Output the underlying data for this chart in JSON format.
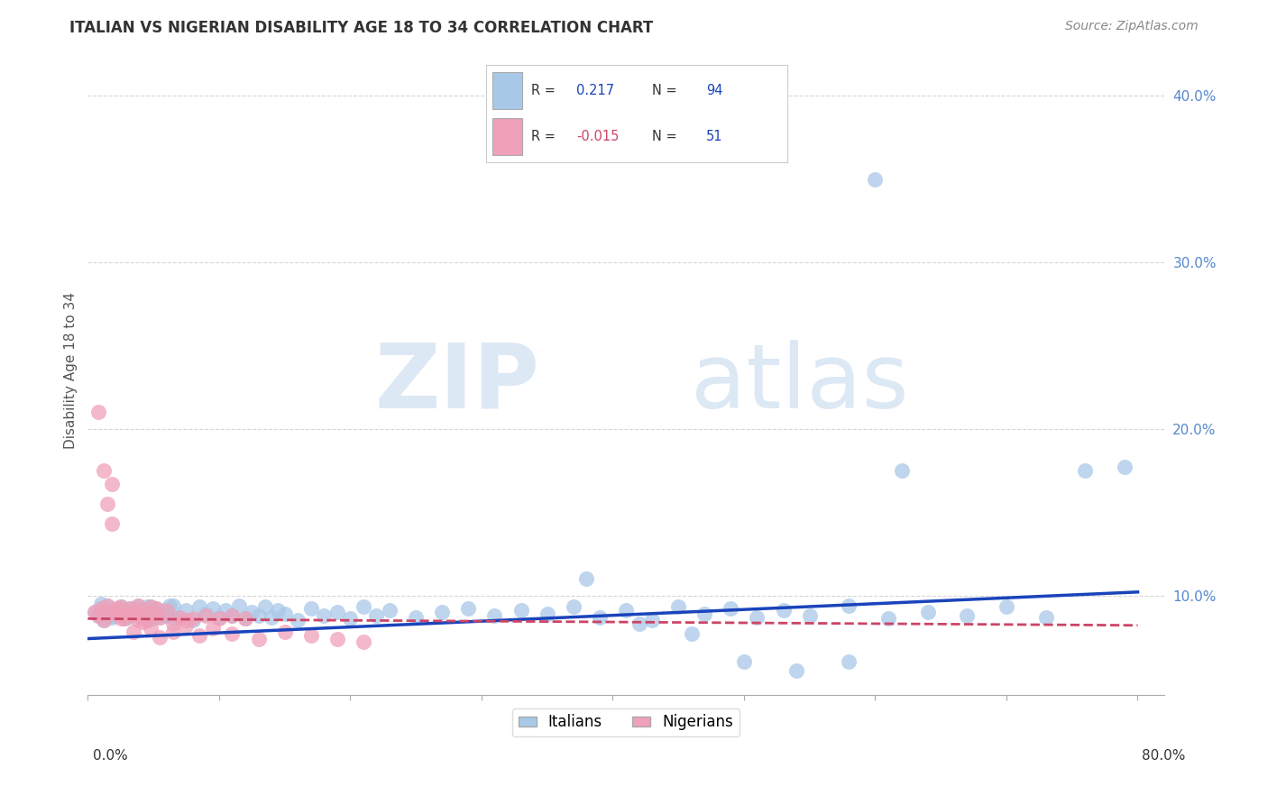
{
  "title": "ITALIAN VS NIGERIAN DISABILITY AGE 18 TO 34 CORRELATION CHART",
  "source": "Source: ZipAtlas.com",
  "ylabel": "Disability Age 18 to 34",
  "xlim": [
    0.0,
    0.82
  ],
  "ylim": [
    0.04,
    0.43
  ],
  "italian_R": 0.217,
  "italian_N": 94,
  "nigerian_R": -0.015,
  "nigerian_N": 51,
  "italian_color": "#a8c8e8",
  "nigerian_color": "#f0a0b8",
  "italian_line_color": "#1a44bb",
  "nigerian_line_color": "#cc4466",
  "watermark_zip": "ZIP",
  "watermark_atlas": "atlas",
  "watermark_color": "#dde8f5",
  "background_color": "#ffffff",
  "grid_color": "#cccccc",
  "title_color": "#333333",
  "title_fontsize": 12,
  "ytick_vals": [
    0.1,
    0.2,
    0.3,
    0.4
  ],
  "ytick_labels": [
    "10.0%",
    "20.0%",
    "30.0%",
    "40.0%"
  ],
  "xtick_vals": [
    0.0,
    0.1,
    0.2,
    0.3,
    0.4,
    0.5,
    0.6,
    0.7,
    0.8
  ],
  "italian_scatter_x": [
    0.005,
    0.008,
    0.01,
    0.012,
    0.015,
    0.018,
    0.02,
    0.022,
    0.025,
    0.028,
    0.03,
    0.032,
    0.035,
    0.038,
    0.04,
    0.042,
    0.045,
    0.048,
    0.05,
    0.052,
    0.055,
    0.058,
    0.06,
    0.062,
    0.065,
    0.01,
    0.015,
    0.02,
    0.025,
    0.03,
    0.035,
    0.04,
    0.045,
    0.05,
    0.055,
    0.06,
    0.065,
    0.07,
    0.075,
    0.08,
    0.085,
    0.09,
    0.095,
    0.1,
    0.105,
    0.11,
    0.115,
    0.12,
    0.125,
    0.13,
    0.135,
    0.14,
    0.145,
    0.15,
    0.16,
    0.17,
    0.18,
    0.19,
    0.2,
    0.21,
    0.22,
    0.23,
    0.25,
    0.27,
    0.29,
    0.31,
    0.33,
    0.35,
    0.37,
    0.39,
    0.41,
    0.43,
    0.45,
    0.47,
    0.49,
    0.51,
    0.53,
    0.55,
    0.58,
    0.61,
    0.64,
    0.67,
    0.7,
    0.73,
    0.76,
    0.79,
    0.58,
    0.6,
    0.62,
    0.38,
    0.42,
    0.46,
    0.5,
    0.54
  ],
  "italian_scatter_y": [
    0.09,
    0.088,
    0.092,
    0.085,
    0.094,
    0.087,
    0.091,
    0.089,
    0.093,
    0.086,
    0.088,
    0.092,
    0.09,
    0.094,
    0.087,
    0.091,
    0.085,
    0.093,
    0.089,
    0.092,
    0.087,
    0.091,
    0.088,
    0.094,
    0.086,
    0.095,
    0.09,
    0.088,
    0.092,
    0.087,
    0.091,
    0.089,
    0.093,
    0.086,
    0.09,
    0.088,
    0.094,
    0.087,
    0.091,
    0.085,
    0.093,
    0.089,
    0.092,
    0.087,
    0.091,
    0.088,
    0.094,
    0.086,
    0.09,
    0.088,
    0.093,
    0.087,
    0.091,
    0.089,
    0.085,
    0.092,
    0.088,
    0.09,
    0.086,
    0.093,
    0.088,
    0.091,
    0.087,
    0.09,
    0.092,
    0.088,
    0.091,
    0.089,
    0.093,
    0.087,
    0.091,
    0.085,
    0.093,
    0.089,
    0.092,
    0.087,
    0.091,
    0.088,
    0.094,
    0.086,
    0.09,
    0.088,
    0.093,
    0.087,
    0.175,
    0.177,
    0.06,
    0.35,
    0.175,
    0.11,
    0.083,
    0.077,
    0.06,
    0.055
  ],
  "nigerian_scatter_x": [
    0.005,
    0.008,
    0.01,
    0.012,
    0.015,
    0.018,
    0.02,
    0.022,
    0.025,
    0.028,
    0.03,
    0.032,
    0.035,
    0.038,
    0.04,
    0.042,
    0.045,
    0.048,
    0.05,
    0.052,
    0.055,
    0.06,
    0.065,
    0.07,
    0.075,
    0.08,
    0.09,
    0.1,
    0.11,
    0.12,
    0.008,
    0.012,
    0.015,
    0.018,
    0.022,
    0.025,
    0.035,
    0.038,
    0.042,
    0.048,
    0.055,
    0.065,
    0.075,
    0.085,
    0.095,
    0.11,
    0.13,
    0.15,
    0.17,
    0.19,
    0.21
  ],
  "nigerian_scatter_y": [
    0.09,
    0.088,
    0.092,
    0.085,
    0.094,
    0.167,
    0.091,
    0.089,
    0.093,
    0.086,
    0.088,
    0.092,
    0.09,
    0.094,
    0.087,
    0.091,
    0.085,
    0.093,
    0.089,
    0.092,
    0.087,
    0.091,
    0.083,
    0.087,
    0.085,
    0.086,
    0.088,
    0.086,
    0.088,
    0.086,
    0.21,
    0.175,
    0.155,
    0.143,
    0.092,
    0.086,
    0.078,
    0.085,
    0.084,
    0.08,
    0.075,
    0.078,
    0.082,
    0.076,
    0.08,
    0.077,
    0.074,
    0.078,
    0.076,
    0.074,
    0.072
  ],
  "it_trend_x": [
    0.0,
    0.8
  ],
  "it_trend_y": [
    0.074,
    0.102
  ],
  "ni_trend_x": [
    0.0,
    0.8
  ],
  "ni_trend_y": [
    0.086,
    0.082
  ]
}
